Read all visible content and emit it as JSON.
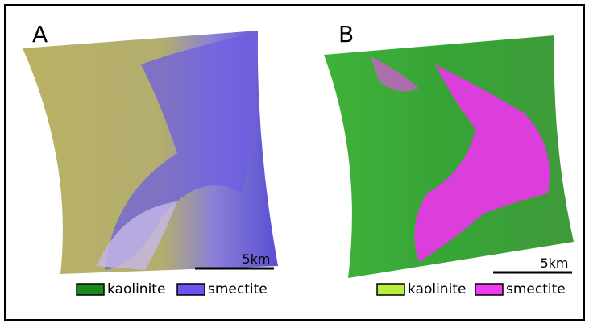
{
  "panels": [
    {
      "label": "A",
      "scale_bar": "5km",
      "legend": [
        {
          "name": "kaolinite",
          "color": "#178a17"
        },
        {
          "name": "smectite",
          "color": "#6a55f0"
        }
      ]
    },
    {
      "label": "B",
      "scale_bar": "5km",
      "legend": [
        {
          "name": "kaolinite",
          "color": "#b6f03a"
        },
        {
          "name": "smectite",
          "color": "#f03cf0"
        }
      ]
    }
  ]
}
